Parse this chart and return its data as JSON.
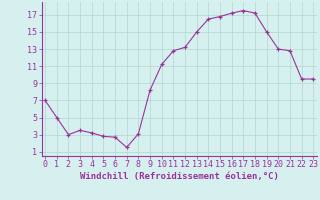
{
  "x": [
    0,
    1,
    2,
    3,
    4,
    5,
    6,
    7,
    8,
    9,
    10,
    11,
    12,
    13,
    14,
    15,
    16,
    17,
    18,
    19,
    20,
    21,
    22,
    23
  ],
  "y": [
    7,
    5,
    3,
    3.5,
    3.2,
    2.8,
    2.7,
    1.5,
    3.1,
    8.2,
    11.2,
    12.8,
    13.2,
    15.0,
    16.5,
    16.8,
    17.2,
    17.5,
    17.2,
    15.0,
    13.0,
    12.8,
    9.5,
    9.5
  ],
  "ylim": [
    0.5,
    18.5
  ],
  "xlim": [
    -0.3,
    23.3
  ],
  "yticks": [
    1,
    3,
    5,
    7,
    9,
    11,
    13,
    15,
    17
  ],
  "xticks": [
    0,
    1,
    2,
    3,
    4,
    5,
    6,
    7,
    8,
    9,
    10,
    11,
    12,
    13,
    14,
    15,
    16,
    17,
    18,
    19,
    20,
    21,
    22,
    23
  ],
  "line_color": "#993399",
  "marker": "+",
  "background_color": "#d6f0f0",
  "grid_color": "#b0d8cc",
  "xlabel": "Windchill (Refroidissement éolien,°C)",
  "xlabel_fontsize": 6.5,
  "tick_fontsize": 6,
  "title": ""
}
